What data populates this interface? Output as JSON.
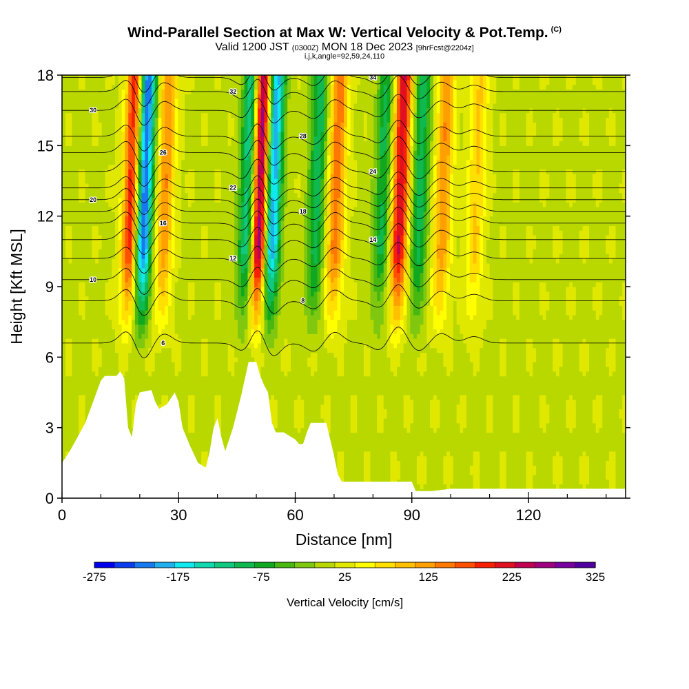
{
  "header": {
    "title_main": "Wind-Parallel Section at Max W: Vertical Velocity & Pot.Temp.",
    "title_copy": "(C)",
    "valid_a": "Valid 1200 JST",
    "valid_small": "(0300Z)",
    "valid_b": "MON 18 Dec 2023",
    "valid_fcst": "[9hrFcst@2204z]",
    "indices": "i,j,k,angle=92,59,24,110"
  },
  "chart_data": {
    "type": "heatmap",
    "title": "Wind-Parallel Section at Max W: Vertical Velocity & Pot.Temp.",
    "xlabel": "Distance [nm]",
    "ylabel": "Height [Kft MSL]",
    "xlim": [
      0,
      145
    ],
    "ylim": [
      0,
      18
    ],
    "xticks": [
      0,
      30,
      60,
      90,
      120
    ],
    "yticks": [
      0,
      3,
      6,
      9,
      12,
      15,
      18
    ],
    "colorbar": {
      "label": "Vertical Velocity [cm/s]",
      "ticks": [
        -275,
        -175,
        -75,
        25,
        125,
        225,
        325
      ],
      "colors": [
        "#0000ee",
        "#0c3cf0",
        "#1878f0",
        "#20b0f0",
        "#10e8f0",
        "#10d8b0",
        "#10c880",
        "#10b850",
        "#10a820",
        "#48b810",
        "#80c810",
        "#b8d800",
        "#e0e800",
        "#ffff00",
        "#ffe000",
        "#ffc000",
        "#ffa000",
        "#ff7800",
        "#ff5000",
        "#f82000",
        "#e01020",
        "#c00050",
        "#a00080",
        "#7800a0",
        "#5000a0"
      ]
    },
    "updrafts": [
      {
        "x": 17.5,
        "w": 210
      },
      {
        "x": 26,
        "w": 120
      },
      {
        "x": 50.5,
        "w": 310
      },
      {
        "x": 70,
        "w": 140
      },
      {
        "x": 86.5,
        "w": 220
      },
      {
        "x": 97.5,
        "w": 120
      },
      {
        "x": 106,
        "w": 80
      }
    ],
    "downdrafts": [
      {
        "x": 20.5,
        "w": -260
      },
      {
        "x": 47.5,
        "w": -160
      },
      {
        "x": 53.5,
        "w": -240
      },
      {
        "x": 65,
        "w": -110
      },
      {
        "x": 82,
        "w": -100
      },
      {
        "x": 91.5,
        "w": -110
      }
    ],
    "terrain": [
      [
        0,
        1.5
      ],
      [
        2,
        2.0
      ],
      [
        4,
        2.6
      ],
      [
        6,
        3.2
      ],
      [
        8,
        4.1
      ],
      [
        10,
        5.0
      ],
      [
        11,
        5.2
      ],
      [
        14,
        5.2
      ],
      [
        15,
        5.4
      ],
      [
        16,
        5.1
      ],
      [
        17,
        3.0
      ],
      [
        18,
        2.6
      ],
      [
        19,
        4.0
      ],
      [
        20,
        4.5
      ],
      [
        23,
        4.6
      ],
      [
        24,
        4.1
      ],
      [
        25,
        3.8
      ],
      [
        27,
        4.0
      ],
      [
        29,
        4.5
      ],
      [
        30,
        4.1
      ],
      [
        31,
        3.0
      ],
      [
        33,
        2.2
      ],
      [
        35,
        1.5
      ],
      [
        37,
        1.3
      ],
      [
        38,
        2.0
      ],
      [
        39,
        3.0
      ],
      [
        40,
        3.4
      ],
      [
        41,
        2.6
      ],
      [
        42,
        2.0
      ],
      [
        44,
        3.0
      ],
      [
        46,
        4.3
      ],
      [
        48,
        5.8
      ],
      [
        50,
        5.8
      ],
      [
        51,
        5.2
      ],
      [
        52,
        4.8
      ],
      [
        53,
        4.5
      ],
      [
        54,
        3.2
      ],
      [
        55,
        2.8
      ],
      [
        57,
        2.8
      ],
      [
        60,
        2.5
      ],
      [
        61,
        2.3
      ],
      [
        62,
        2.3
      ],
      [
        63,
        2.8
      ],
      [
        64,
        3.2
      ],
      [
        68,
        3.2
      ],
      [
        69,
        2.5
      ],
      [
        70,
        1.8
      ],
      [
        71,
        1.0
      ],
      [
        72,
        0.7
      ],
      [
        75,
        0.7
      ],
      [
        90,
        0.7
      ],
      [
        91,
        0.3
      ],
      [
        95,
        0.3
      ],
      [
        100,
        0.4
      ],
      [
        145,
        0.4
      ]
    ],
    "theta_contours": [
      {
        "label": "6",
        "base": 6.6
      },
      {
        "label": "8",
        "base": 8.4
      },
      {
        "label": "10",
        "base": 9.3
      },
      {
        "label": "12",
        "base": 10.2
      },
      {
        "label": "14",
        "base": 11.0
      },
      {
        "label": "16",
        "base": 11.7
      },
      {
        "label": "18",
        "base": 12.2
      },
      {
        "label": "20",
        "base": 12.7
      },
      {
        "label": "22",
        "base": 13.2
      },
      {
        "label": "24",
        "base": 13.9
      },
      {
        "label": "26",
        "base": 14.7
      },
      {
        "label": "28",
        "base": 15.4
      },
      {
        "label": "30",
        "base": 16.5
      },
      {
        "label": "32",
        "base": 17.3
      },
      {
        "label": "34",
        "base": 17.9
      }
    ]
  }
}
